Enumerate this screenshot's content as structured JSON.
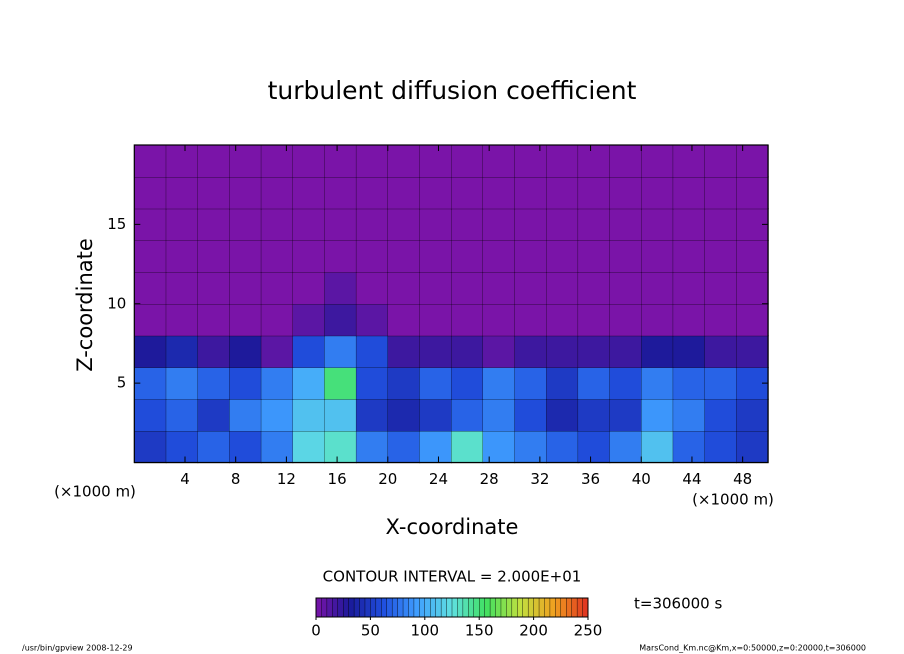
{
  "chart_data": {
    "type": "contour",
    "title": "turbulent diffusion coefficient",
    "xlabel": "X-coordinate",
    "ylabel": "Z-coordinate",
    "x_unit_label": "(×1000 m)",
    "y_unit_label": "(×1000 m)",
    "xlim": [
      0,
      50
    ],
    "ylim": [
      0,
      20
    ],
    "xticks": [
      4,
      8,
      12,
      16,
      20,
      24,
      28,
      32,
      36,
      40,
      44,
      48
    ],
    "yticks": [
      5,
      10,
      15
    ],
    "x": [
      1.25,
      3.75,
      6.25,
      8.75,
      11.25,
      13.75,
      16.25,
      18.75,
      21.25,
      23.75,
      26.25,
      28.75,
      31.25,
      33.75,
      36.25,
      38.75,
      41.25,
      43.75,
      46.25,
      48.75
    ],
    "y": [
      1,
      3,
      5,
      7,
      9,
      11,
      13,
      15,
      17,
      19
    ],
    "values": [
      [
        50,
        60,
        70,
        60,
        80,
        120,
        130,
        80,
        70,
        90,
        130,
        90,
        80,
        70,
        60,
        80,
        110,
        70,
        60,
        50
      ],
      [
        60,
        70,
        50,
        80,
        90,
        110,
        110,
        50,
        40,
        50,
        70,
        80,
        60,
        40,
        50,
        50,
        90,
        80,
        60,
        50
      ],
      [
        70,
        80,
        70,
        60,
        80,
        100,
        150,
        60,
        50,
        70,
        60,
        80,
        70,
        50,
        70,
        60,
        80,
        70,
        70,
        60
      ],
      [
        30,
        40,
        20,
        30,
        10,
        60,
        80,
        60,
        20,
        20,
        20,
        10,
        20,
        20,
        20,
        20,
        30,
        30,
        20,
        20
      ],
      [
        0,
        0,
        0,
        0,
        0,
        10,
        20,
        10,
        0,
        0,
        0,
        0,
        0,
        0,
        0,
        0,
        0,
        0,
        0,
        0
      ],
      [
        0,
        0,
        0,
        0,
        0,
        0,
        10,
        0,
        0,
        0,
        0,
        0,
        0,
        0,
        0,
        0,
        0,
        0,
        0,
        0
      ],
      [
        0,
        0,
        0,
        0,
        0,
        0,
        0,
        0,
        0,
        0,
        0,
        0,
        0,
        0,
        0,
        0,
        0,
        0,
        0,
        0
      ],
      [
        0,
        0,
        0,
        0,
        0,
        0,
        0,
        0,
        0,
        0,
        0,
        0,
        0,
        0,
        0,
        0,
        0,
        0,
        0,
        0
      ],
      [
        0,
        0,
        0,
        0,
        0,
        0,
        0,
        0,
        0,
        0,
        0,
        0,
        0,
        0,
        0,
        0,
        0,
        0,
        0,
        0
      ],
      [
        0,
        0,
        0,
        0,
        0,
        0,
        0,
        0,
        0,
        0,
        0,
        0,
        0,
        0,
        0,
        0,
        0,
        0,
        0,
        0
      ]
    ],
    "colormap": [
      "#7a14a8",
      "#1a1a9a",
      "#2050e0",
      "#40a0ff",
      "#60e0e0",
      "#40e060",
      "#c0e040",
      "#f0a020",
      "#e03020"
    ],
    "clim": [
      0,
      250
    ],
    "cticks": [
      0,
      50,
      100,
      150,
      200,
      250
    ],
    "contour_interval": "CONTOUR INTERVAL = 2.000E+01",
    "time_label": "t=306000 s",
    "footer_left": "/usr/bin/gpview   2008-12-29",
    "footer_right": "MarsCond_Km.nc@Km,x=0:50000,z=0:20000,t=306000"
  }
}
